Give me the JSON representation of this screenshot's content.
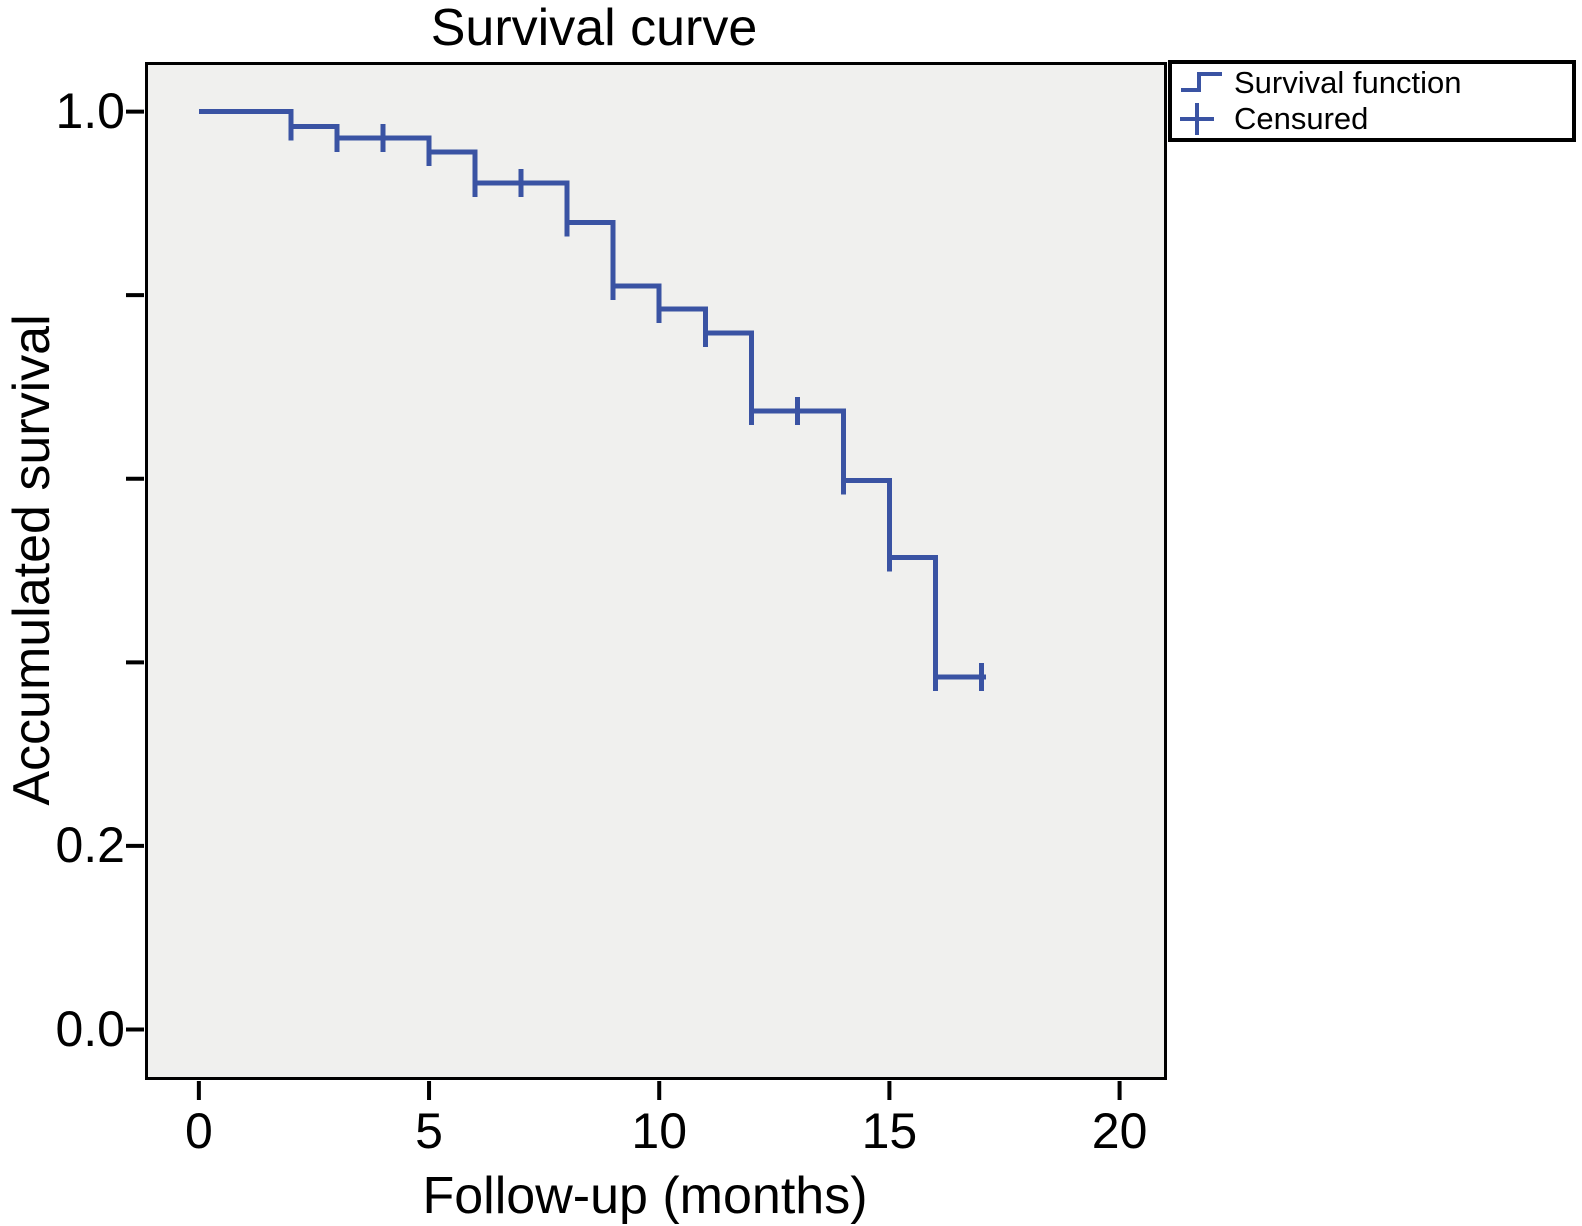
{
  "title": "Survival curve",
  "colors": {
    "curve": "#3A53A3",
    "plot_background": "#F0F0EE",
    "axis": "#000000",
    "legend_border": "#000000"
  },
  "legend": {
    "items": [
      {
        "label": "Survival function",
        "glyph": "step-icon"
      },
      {
        "label": "Censured",
        "glyph": "plus-icon"
      }
    ]
  },
  "chart_data": {
    "type": "line",
    "subtype": "kaplan-meier-step",
    "title": "Survival curve",
    "xlabel": "Follow-up (months)",
    "ylabel": "Accumulated survival",
    "legend_position": "top-right-outside",
    "grid": false,
    "x_axis": {
      "domain": [
        -1.17,
        21.03
      ],
      "ticks": [
        {
          "v": 0,
          "label": "0"
        },
        {
          "v": 5,
          "label": "5"
        },
        {
          "v": 10,
          "label": "10"
        },
        {
          "v": 15,
          "label": "15"
        },
        {
          "v": 20,
          "label": "20"
        }
      ]
    },
    "y_axis": {
      "domain": [
        -0.055,
        1.054
      ],
      "ticks": [
        {
          "v": 1.0,
          "label": "1.0"
        },
        {
          "v": 0.8,
          "label": ""
        },
        {
          "v": 0.6,
          "label": ""
        },
        {
          "v": 0.4,
          "label": ""
        },
        {
          "v": 0.2,
          "label": "0.2"
        },
        {
          "v": 0.0,
          "label": "0.0"
        }
      ]
    },
    "series": [
      {
        "name": "Survival function",
        "steps": [
          {
            "t": 0,
            "s": 1.0
          },
          {
            "t": 2,
            "s": 0.984
          },
          {
            "t": 3,
            "s": 0.971
          },
          {
            "t": 5,
            "s": 0.956
          },
          {
            "t": 6,
            "s": 0.922
          },
          {
            "t": 8,
            "s": 0.879
          },
          {
            "t": 9,
            "s": 0.81
          },
          {
            "t": 10,
            "s": 0.785
          },
          {
            "t": 11,
            "s": 0.759
          },
          {
            "t": 12,
            "s": 0.674
          },
          {
            "t": 14,
            "s": 0.598
          },
          {
            "t": 15,
            "s": 0.514
          },
          {
            "t": 16,
            "s": 0.384
          }
        ],
        "curve_end_t": 17.1,
        "censored": [
          {
            "t": 2,
            "s": 0.984
          },
          {
            "t": 3,
            "s": 0.971
          },
          {
            "t": 4,
            "s": 0.971
          },
          {
            "t": 5,
            "s": 0.956
          },
          {
            "t": 6,
            "s": 0.922
          },
          {
            "t": 7,
            "s": 0.922
          },
          {
            "t": 8,
            "s": 0.879
          },
          {
            "t": 9,
            "s": 0.81
          },
          {
            "t": 10,
            "s": 0.785
          },
          {
            "t": 11,
            "s": 0.759
          },
          {
            "t": 12,
            "s": 0.674
          },
          {
            "t": 13,
            "s": 0.674
          },
          {
            "t": 14,
            "s": 0.598
          },
          {
            "t": 15,
            "s": 0.514
          },
          {
            "t": 16,
            "s": 0.384
          },
          {
            "t": 17,
            "s": 0.384
          }
        ]
      }
    ]
  }
}
